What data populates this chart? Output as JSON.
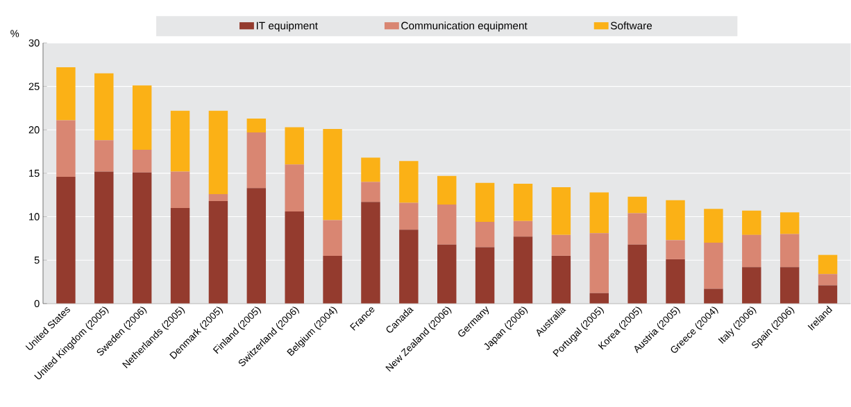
{
  "chart_data": {
    "type": "bar",
    "stacked": true,
    "ylabel": "%",
    "categories": [
      "United States",
      "United Kingdom (2005)",
      "Sweden (2006)",
      "Netherlands (2005)",
      "Denmark (2005)",
      "Finland (2005)",
      "Switzerland (2006)",
      "Belgium (2004)",
      "France",
      "Canada",
      "New Zealand (2006)",
      "Germany",
      "Japan (2006)",
      "Australia",
      "Portugal (2005)",
      "Korea (2005)",
      "Austria (2005)",
      "Greece (2004)",
      "Italy (2006)",
      "Spain (2006)",
      "Ireland"
    ],
    "series": [
      {
        "name": "IT equipment",
        "color": "#943b2e",
        "values": [
          14.6,
          15.2,
          15.1,
          11.0,
          11.8,
          13.3,
          10.6,
          5.5,
          11.7,
          8.5,
          6.8,
          6.5,
          7.7,
          5.5,
          1.2,
          6.8,
          5.1,
          1.7,
          4.2,
          4.2,
          2.1
        ]
      },
      {
        "name": "Communication equipment",
        "color": "#d98672",
        "values": [
          6.5,
          3.6,
          2.6,
          4.2,
          0.8,
          6.4,
          5.4,
          4.1,
          2.3,
          3.1,
          4.6,
          2.9,
          1.8,
          2.4,
          6.9,
          3.6,
          2.2,
          5.3,
          3.7,
          3.8,
          1.3
        ]
      },
      {
        "name": "Software",
        "color": "#fbb116",
        "values": [
          6.1,
          7.7,
          7.4,
          7.0,
          9.6,
          1.6,
          4.3,
          10.5,
          2.8,
          4.8,
          3.3,
          4.5,
          4.3,
          5.5,
          4.7,
          1.9,
          4.6,
          3.9,
          2.8,
          2.5,
          2.2
        ]
      }
    ],
    "ylim": [
      0,
      30
    ],
    "yticks": [
      0,
      5,
      10,
      15,
      20,
      25,
      30
    ],
    "grid": "y",
    "legend": "top"
  }
}
